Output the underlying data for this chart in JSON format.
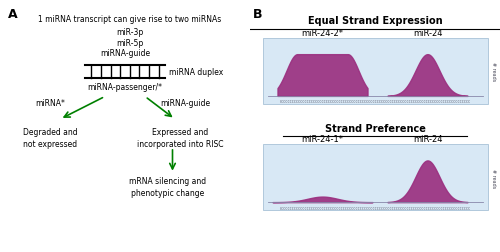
{
  "panel_a_text_lines": [
    "1 miRNA transcript can give rise to two miRNAs",
    "miR-3p",
    "miR-5p"
  ],
  "duplex_label": "miRNA-guide",
  "duplex_label2": "miRNA duplex",
  "passenger_label": "miRNA-passenger/*",
  "left_branch_top": "miRNA*",
  "right_branch_top": "miRNA-guide",
  "left_outcome_line1": "Degraded and",
  "left_outcome_line2": "not expressed",
  "right_outcome_line1": "Expressed and",
  "right_outcome_line2": "incorporated into RISC",
  "bottom_outcome_line1": "mRNA silencing and",
  "bottom_outcome_line2": "phenotypic change",
  "panel_b_title1": "Equal Strand Expression",
  "panel_b_title2": "Strand Preference",
  "eq_label_left": "miR-24-2*",
  "eq_label_right": "miR-24",
  "sp_label_left": "miR-24-1*",
  "sp_label_right": "miR-24",
  "bg_color": "#ffffff",
  "panel_bg": "#d8e8f5",
  "miRNA_color": "#9b3080",
  "baseline_color": "#8888aa",
  "reads_label": "# reads"
}
